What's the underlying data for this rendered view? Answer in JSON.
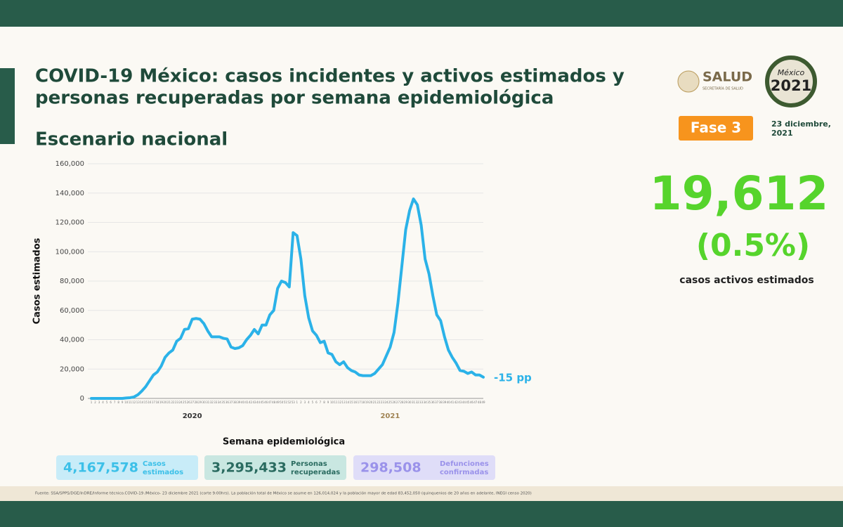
{
  "header": {
    "title": [
      "COVID-19 México: casos incidentes y activos estimados y",
      "personas recuperadas por semana epidemiológica"
    ],
    "subtitle": "Escenario nacional"
  },
  "logos": {
    "salud": "SALUD",
    "salud_sub": "SECRETARÍA DE SALUD",
    "mexico": "México",
    "year": "2021"
  },
  "phase": "Fase 3",
  "date": [
    "23 diciembre,",
    "2021"
  ],
  "active": {
    "value": "19,612",
    "percent": "(0.5%)",
    "label": "casos activos estimados"
  },
  "stats": [
    {
      "value": "4,167,578",
      "label": [
        "Casos",
        "estimados"
      ]
    },
    {
      "value": "3,295,433",
      "label": [
        "Personas",
        "recuperadas"
      ]
    },
    {
      "value": "298,508",
      "label": [
        "Defunciones",
        "confirmadas"
      ]
    }
  ],
  "footnote": "Fuente: SSA/SPPS/DGE/InDRE/Informe técnico.COVID-19 /México- 23 diciembre 2021 (corte 9:00hrs). La población total de México se asume en 126,014,024 y la población mayor de edad 83,452,050 (quinquenios de 20 años en adelante, INEGI censo 2020)",
  "chart_data": {
    "type": "line",
    "x_label": "Semana epidemiológica",
    "y_label": "Casos estimados",
    "annotation": "-15 pp",
    "groups": [
      {
        "label": "2020",
        "count": 53
      },
      {
        "label": "2021",
        "count": 49
      }
    ],
    "categories": [
      "1",
      "2",
      "3",
      "4",
      "5",
      "6",
      "7",
      "8",
      "9",
      "10",
      "11",
      "12",
      "13",
      "14",
      "15",
      "16",
      "17",
      "18",
      "19",
      "20",
      "21",
      "22",
      "23",
      "24",
      "25",
      "26",
      "27",
      "28",
      "29",
      "30",
      "31",
      "32",
      "33",
      "34",
      "35",
      "36",
      "37",
      "38",
      "39",
      "40",
      "41",
      "42",
      "43",
      "44",
      "45",
      "46",
      "47",
      "48",
      "49",
      "50",
      "51",
      "52",
      "53",
      "1",
      "2",
      "3",
      "4",
      "5",
      "6",
      "7",
      "8",
      "9",
      "10",
      "11",
      "12",
      "13",
      "14",
      "15",
      "16",
      "17",
      "18",
      "19",
      "20",
      "21",
      "22",
      "23",
      "24",
      "25",
      "26",
      "27",
      "28",
      "29",
      "30",
      "31",
      "32",
      "33",
      "34",
      "35",
      "36",
      "37",
      "38",
      "39",
      "40",
      "41",
      "42",
      "43",
      "44",
      "45",
      "46",
      "47",
      "48",
      "49"
    ],
    "series": [
      {
        "name": "Casos estimados",
        "color": "#2bb2e8",
        "values": [
          0,
          0,
          0,
          0,
          0,
          0,
          0,
          0,
          0,
          300,
          500,
          1000,
          2500,
          5000,
          8000,
          12000,
          16000,
          18000,
          22000,
          28000,
          31000,
          33000,
          39000,
          41000,
          47000,
          47500,
          54000,
          54500,
          54000,
          51000,
          46000,
          42000,
          42000,
          42000,
          41000,
          40500,
          35000,
          34000,
          34500,
          36000,
          40000,
          43000,
          47000,
          44000,
          50000,
          50000,
          57000,
          60000,
          75000,
          80000,
          79000,
          76000,
          113000,
          111000,
          95000,
          70000,
          55000,
          46000,
          43000,
          38000,
          39000,
          31000,
          30000,
          25000,
          23000,
          25000,
          21000,
          19000,
          18000,
          16000,
          15500,
          15500,
          15500,
          17000,
          20000,
          23000,
          29000,
          35000,
          45000,
          65000,
          90000,
          115000,
          128000,
          136000,
          132000,
          118000,
          95000,
          85000,
          70000,
          57000,
          53000,
          42000,
          33000,
          28000,
          24000,
          19000,
          18500,
          17000,
          18000,
          16000,
          16000,
          14500
        ]
      }
    ],
    "ylim": [
      0,
      160000
    ],
    "yticks": [
      0,
      {
        "value": 20000,
        "label": "20,000"
      },
      {
        "value": 40000,
        "label": "40,000"
      },
      {
        "value": 60000,
        "label": "60,000"
      },
      {
        "value": 80000,
        "label": "80,000"
      },
      {
        "value": 100000,
        "label": "100,000"
      },
      {
        "value": 120000,
        "label": "120,000"
      },
      {
        "value": 140000,
        "label": "140,000"
      },
      {
        "value": 160000,
        "label": "160,000"
      }
    ],
    "grid": true
  }
}
